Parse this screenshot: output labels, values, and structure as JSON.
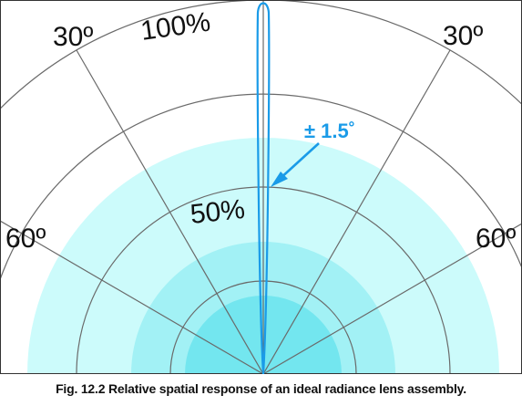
{
  "figure": {
    "caption": "Fig. 12.2  Relative spatial response of an ideal radiance lens assembly.",
    "angle_labels": {
      "left_30": "30º",
      "right_30": "30º",
      "left_60": "60º",
      "right_60": "60º"
    },
    "radial_labels": {
      "r100": "100%",
      "r50": "50%"
    },
    "beam_label": "± 1.5˚",
    "beam_half_angle_deg": 1.5,
    "colors": {
      "shade_light": "#ccfbfb",
      "shade_mid": "#a2f1f5",
      "shade_dark": "#73e6ef",
      "beam": "#1a9be8",
      "grid": "#6a6a6a",
      "text": "#111111"
    }
  }
}
